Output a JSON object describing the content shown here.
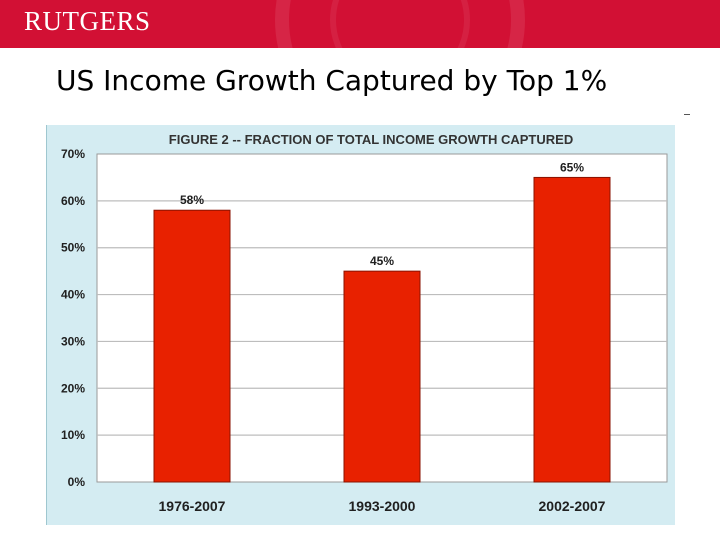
{
  "header": {
    "logo_text": "RUTGERS",
    "brand_color": "#d21034"
  },
  "slide": {
    "title": "US Income Growth Captured by Top 1%"
  },
  "chart_data": {
    "type": "bar",
    "title": "FIGURE 2 -- FRACTION OF TOTAL INCOME GROWTH CAPTURED",
    "categories": [
      "1976-2007",
      "1993-2000",
      "2002-2007"
    ],
    "values": [
      58,
      45,
      65
    ],
    "data_labels": [
      "58%",
      "45%",
      "65%"
    ],
    "ylim": [
      0,
      70
    ],
    "yticks": [
      0,
      10,
      20,
      30,
      40,
      50,
      60,
      70
    ],
    "ytick_labels": [
      "0%",
      "10%",
      "20%",
      "30%",
      "40%",
      "50%",
      "60%",
      "70%"
    ],
    "xlabel": "",
    "ylabel": "",
    "grid": true,
    "legend": "none",
    "colors": {
      "bar": "#e82100",
      "bar_edge": "#8a1200",
      "panel_background": "#d4ecf2",
      "plot_background": "#ffffff",
      "grid": "#bdbdbd",
      "text": "#202020"
    }
  }
}
